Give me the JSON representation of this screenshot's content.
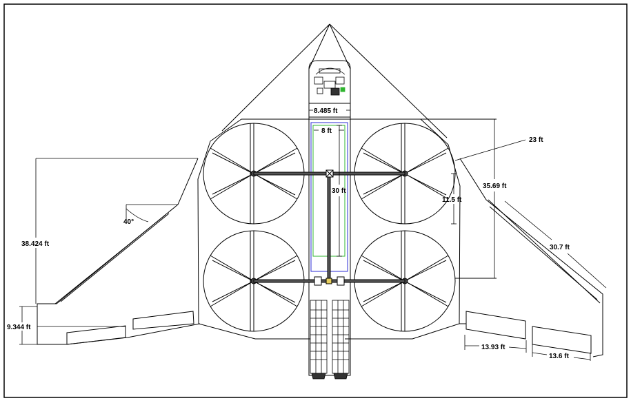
{
  "dimensions": {
    "cockpit_width": "8.485 ft",
    "bay_width": "8 ft",
    "shaft_length": "30 ft",
    "fan_diameter": "23 ft",
    "fan_radius": "11.5 ft",
    "fan_span": "35.69 ft",
    "wing_span": "38.424 ft",
    "sweep_angle": "40°",
    "leading_edge": "30.7 ft",
    "root_height": "9.344 ft",
    "flap_width_left": "13.93 ft",
    "flap_width_right": "13.6 ft"
  },
  "colors": {
    "line": "#000000",
    "bay_outer": "#2b2bd6",
    "bay_inner": "#2fb52f",
    "frame": "#000000",
    "fan_hub": "#444444"
  }
}
